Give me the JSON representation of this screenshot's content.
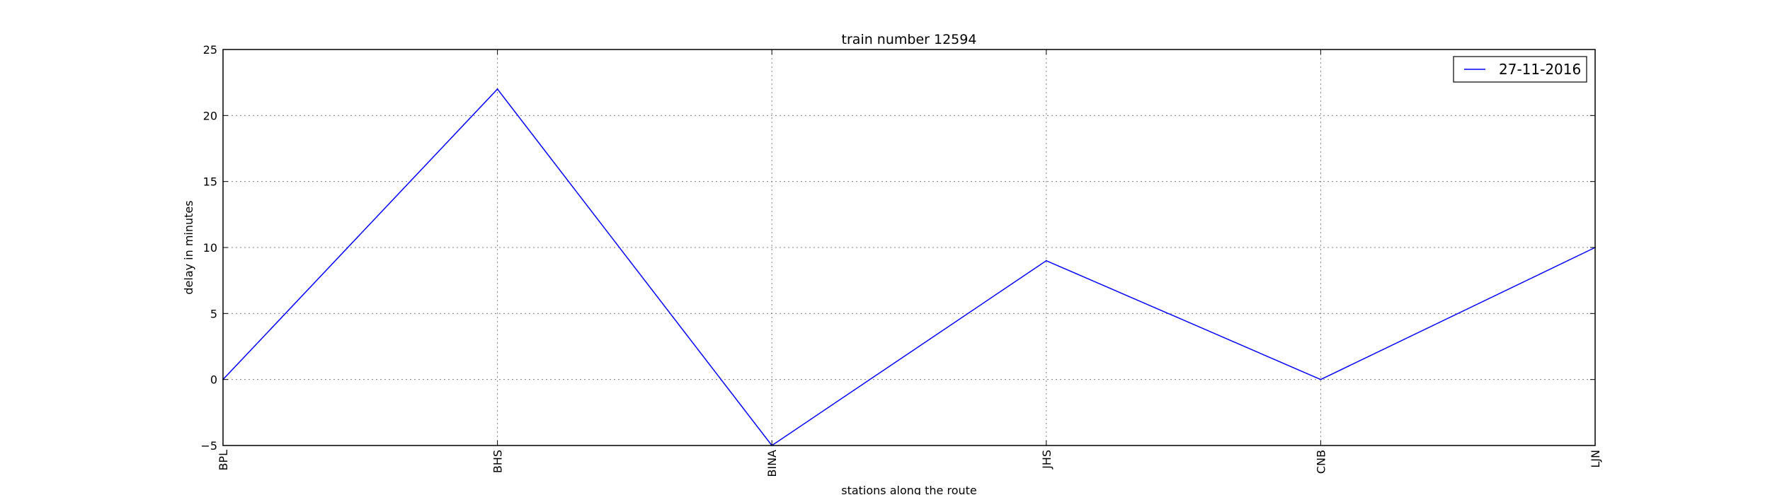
{
  "chart_data": {
    "type": "line",
    "title": "train number 12594",
    "xlabel": "stations along the route",
    "ylabel": "delay in minutes",
    "categories": [
      "BPL",
      "BHS",
      "BINA",
      "JHS",
      "CNB",
      "LJN"
    ],
    "series": [
      {
        "name": "27-11-2016",
        "values": [
          0,
          22,
          -5,
          9,
          0,
          10
        ],
        "color": "#0000ff"
      }
    ],
    "ylim": [
      -5,
      25
    ],
    "yticks": [
      -5,
      0,
      5,
      10,
      15,
      20,
      25
    ],
    "ytick_labels": [
      "−5",
      "0",
      "5",
      "10",
      "15",
      "20",
      "25"
    ],
    "grid": true,
    "legend_position": "top-right"
  }
}
